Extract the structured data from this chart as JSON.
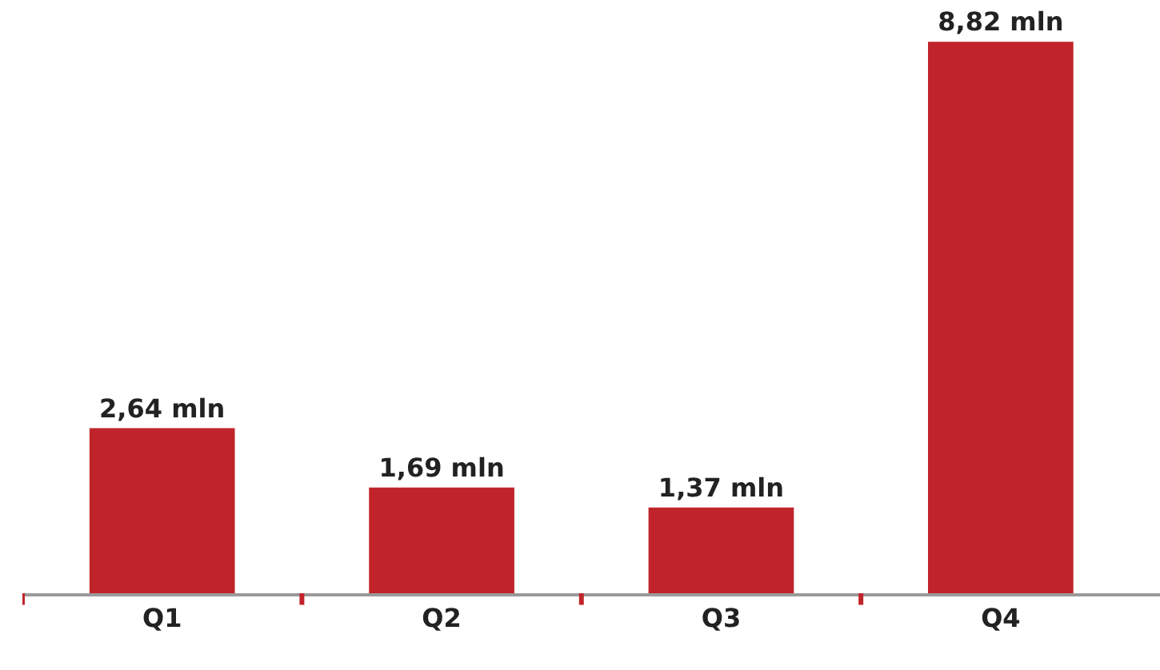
{
  "chart_data": {
    "type": "bar",
    "categories": [
      "Q1",
      "Q2",
      "Q3",
      "Q4"
    ],
    "values": [
      2.64,
      1.69,
      1.37,
      8.82
    ],
    "value_labels": [
      "2,64 mln",
      "1,69 mln",
      "1,37 mln",
      "8,82 mln"
    ],
    "color": "#c0242a",
    "tick_labels": "x"
  }
}
